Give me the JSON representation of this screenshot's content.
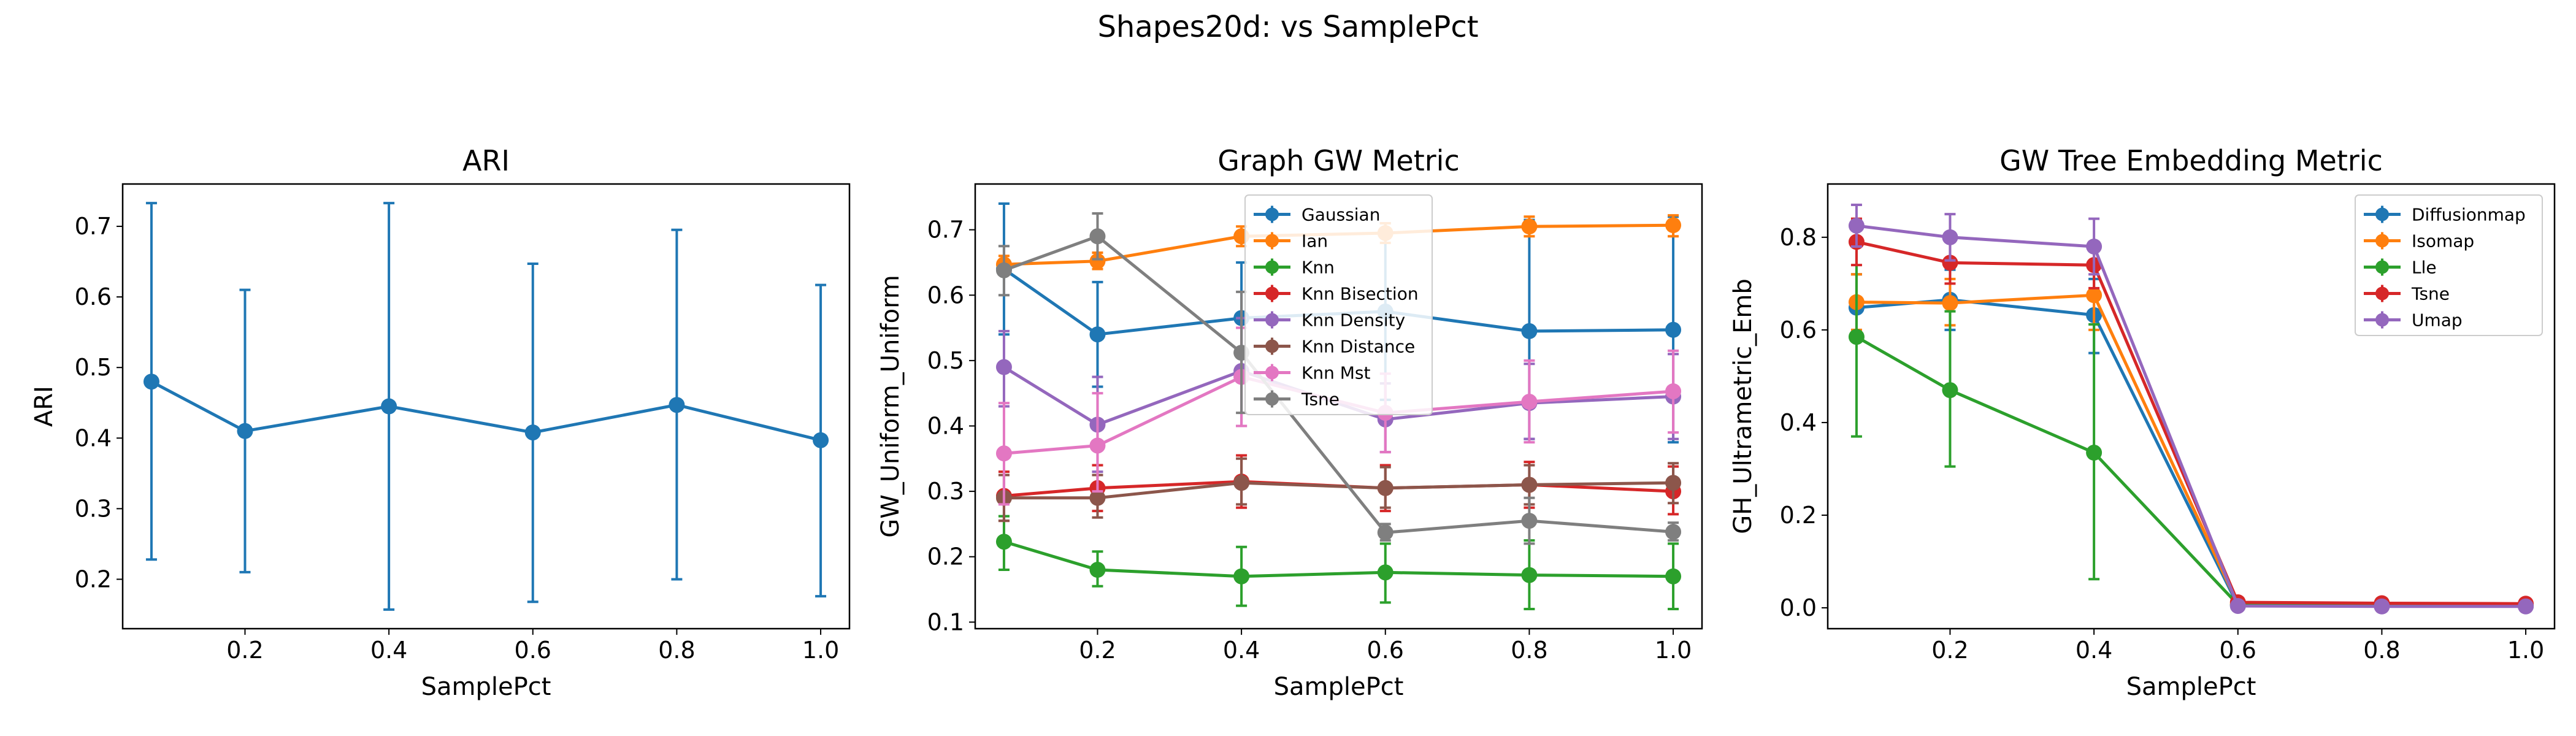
{
  "suptitle": "Shapes20d: vs SamplePct",
  "chart_data": [
    {
      "type": "line",
      "title": "ARI",
      "xlabel": "SamplePct",
      "ylabel": "ARI",
      "xlim": [
        0.03,
        1.04
      ],
      "ylim": [
        0.13,
        0.76
      ],
      "xticks": [
        0.2,
        0.4,
        0.6,
        0.8,
        1.0
      ],
      "xtick_labels": [
        "0.2",
        "0.4",
        "0.6",
        "0.8",
        "1.0"
      ],
      "yticks": [
        0.2,
        0.3,
        0.4,
        0.5,
        0.6,
        0.7
      ],
      "ytick_labels": [
        "0.2",
        "0.3",
        "0.4",
        "0.5",
        "0.6",
        "0.7"
      ],
      "x": [
        0.07,
        0.2,
        0.4,
        0.6,
        0.8,
        1.0
      ],
      "legend": null,
      "series": [
        {
          "name": "",
          "color": "#1f77b4",
          "values": [
            0.48,
            0.41,
            0.445,
            0.408,
            0.447,
            0.397
          ],
          "lower": [
            0.228,
            0.21,
            0.157,
            0.168,
            0.2,
            0.176
          ],
          "upper": [
            0.733,
            0.61,
            0.733,
            0.647,
            0.695,
            0.617
          ]
        }
      ]
    },
    {
      "type": "line",
      "title": "Graph GW Metric",
      "xlabel": "SamplePct",
      "ylabel": "GW_Uniform_Uniform",
      "xlim": [
        0.03,
        1.04
      ],
      "ylim": [
        0.09,
        0.77
      ],
      "xticks": [
        0.2,
        0.4,
        0.6,
        0.8,
        1.0
      ],
      "xtick_labels": [
        "0.2",
        "0.4",
        "0.6",
        "0.8",
        "1.0"
      ],
      "yticks": [
        0.1,
        0.2,
        0.3,
        0.4,
        0.5,
        0.6,
        0.7
      ],
      "ytick_labels": [
        "0.1",
        "0.2",
        "0.3",
        "0.4",
        "0.5",
        "0.6",
        "0.7"
      ],
      "x": [
        0.07,
        0.2,
        0.4,
        0.6,
        0.8,
        1.0
      ],
      "legend": "upper center",
      "series": [
        {
          "name": "Gaussian",
          "color": "#1f77b4",
          "values": [
            0.64,
            0.54,
            0.565,
            0.575,
            0.545,
            0.547
          ],
          "lower": [
            0.54,
            0.46,
            0.48,
            0.44,
            0.38,
            0.375
          ],
          "upper": [
            0.74,
            0.62,
            0.65,
            0.71,
            0.715,
            0.72
          ]
        },
        {
          "name": "Ian",
          "color": "#ff7f0e",
          "values": [
            0.647,
            0.652,
            0.69,
            0.695,
            0.705,
            0.707
          ],
          "lower": [
            0.635,
            0.64,
            0.675,
            0.68,
            0.69,
            0.69
          ],
          "upper": [
            0.66,
            0.665,
            0.705,
            0.71,
            0.72,
            0.722
          ]
        },
        {
          "name": "Knn",
          "color": "#2ca02c",
          "values": [
            0.223,
            0.18,
            0.17,
            0.176,
            0.172,
            0.17
          ],
          "lower": [
            0.18,
            0.155,
            0.125,
            0.13,
            0.12,
            0.12
          ],
          "upper": [
            0.262,
            0.208,
            0.215,
            0.22,
            0.225,
            0.22
          ]
        },
        {
          "name": "Knn Bisection",
          "color": "#d62728",
          "values": [
            0.293,
            0.305,
            0.315,
            0.305,
            0.31,
            0.3
          ],
          "lower": [
            0.255,
            0.27,
            0.275,
            0.27,
            0.275,
            0.265
          ],
          "upper": [
            0.33,
            0.34,
            0.355,
            0.34,
            0.345,
            0.338
          ]
        },
        {
          "name": "Knn Density",
          "color": "#9467bd",
          "values": [
            0.49,
            0.402,
            0.484,
            0.41,
            0.435,
            0.445
          ],
          "lower": [
            0.43,
            0.33,
            0.4,
            0.36,
            0.38,
            0.38
          ],
          "upper": [
            0.545,
            0.475,
            0.565,
            0.465,
            0.495,
            0.51
          ]
        },
        {
          "name": "Knn Distance",
          "color": "#8c564b",
          "values": [
            0.29,
            0.29,
            0.313,
            0.305,
            0.31,
            0.313
          ],
          "lower": [
            0.255,
            0.26,
            0.28,
            0.275,
            0.28,
            0.282
          ],
          "upper": [
            0.325,
            0.325,
            0.35,
            0.337,
            0.34,
            0.343
          ]
        },
        {
          "name": "Knn Mst",
          "color": "#e377c2",
          "values": [
            0.358,
            0.37,
            0.475,
            0.42,
            0.437,
            0.453
          ],
          "lower": [
            0.28,
            0.3,
            0.4,
            0.36,
            0.375,
            0.39
          ],
          "upper": [
            0.435,
            0.45,
            0.55,
            0.48,
            0.5,
            0.515
          ]
        },
        {
          "name": "Tsne",
          "color": "#7f7f7f",
          "values": [
            0.638,
            0.69,
            0.512,
            0.237,
            0.255,
            0.238
          ],
          "lower": [
            0.6,
            0.655,
            0.42,
            0.225,
            0.22,
            0.225
          ],
          "upper": [
            0.675,
            0.725,
            0.605,
            0.25,
            0.29,
            0.252
          ]
        }
      ]
    },
    {
      "type": "line",
      "title": "GW Tree Embedding Metric",
      "xlabel": "SamplePct",
      "ylabel": "GH_Ultrametric_Emb",
      "xlim": [
        0.03,
        1.04
      ],
      "ylim": [
        -0.045,
        0.915
      ],
      "xticks": [
        0.2,
        0.4,
        0.6,
        0.8,
        1.0
      ],
      "xtick_labels": [
        "0.2",
        "0.4",
        "0.6",
        "0.8",
        "1.0"
      ],
      "yticks": [
        0.0,
        0.2,
        0.4,
        0.6,
        0.8
      ],
      "ytick_labels": [
        "0.0",
        "0.2",
        "0.4",
        "0.6",
        "0.8"
      ],
      "x": [
        0.07,
        0.2,
        0.4,
        0.6,
        0.8,
        1.0
      ],
      "legend": "upper right",
      "series": [
        {
          "name": "Diffusionmap",
          "color": "#1f77b4",
          "values": [
            0.648,
            0.665,
            0.632,
            0.005,
            0.004,
            0.004
          ],
          "lower": [
            0.58,
            0.6,
            0.55,
            0.0,
            0.0,
            0.0
          ],
          "upper": [
            0.72,
            0.73,
            0.71,
            0.012,
            0.01,
            0.01
          ]
        },
        {
          "name": "Isomap",
          "color": "#ff7f0e",
          "values": [
            0.66,
            0.658,
            0.675,
            0.008,
            0.007,
            0.006
          ],
          "lower": [
            0.6,
            0.61,
            0.6,
            0.0,
            0.0,
            0.0
          ],
          "upper": [
            0.72,
            0.71,
            0.75,
            0.015,
            0.013,
            0.012
          ]
        },
        {
          "name": "Lle",
          "color": "#2ca02c",
          "values": [
            0.585,
            0.47,
            0.335,
            0.007,
            0.005,
            0.005
          ],
          "lower": [
            0.37,
            0.305,
            0.062,
            0.0,
            0.0,
            0.0
          ],
          "upper": [
            0.795,
            0.64,
            0.612,
            0.014,
            0.011,
            0.01
          ]
        },
        {
          "name": "Tsne",
          "color": "#d62728",
          "values": [
            0.79,
            0.745,
            0.74,
            0.012,
            0.01,
            0.009
          ],
          "lower": [
            0.74,
            0.7,
            0.69,
            0.0,
            0.0,
            0.0
          ],
          "upper": [
            0.84,
            0.79,
            0.79,
            0.02,
            0.018,
            0.016
          ]
        },
        {
          "name": "Umap",
          "color": "#9467bd",
          "values": [
            0.825,
            0.8,
            0.78,
            0.004,
            0.003,
            0.003
          ],
          "lower": [
            0.78,
            0.75,
            0.72,
            0.0,
            0.0,
            0.0
          ],
          "upper": [
            0.87,
            0.85,
            0.84,
            0.01,
            0.008,
            0.008
          ]
        }
      ]
    }
  ]
}
